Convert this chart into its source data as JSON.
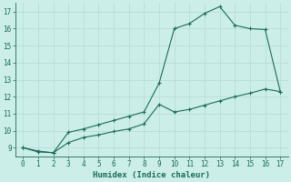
{
  "xlabel": "Humidex (Indice chaleur)",
  "background_color": "#cceee8",
  "grid_color": "#bbddda",
  "line_color": "#1a6b5a",
  "line1_x": [
    0,
    1,
    2,
    3,
    4,
    5,
    6,
    7,
    8,
    9,
    10,
    11,
    12,
    13,
    14,
    15,
    16,
    17
  ],
  "line1_y": [
    9.0,
    8.8,
    8.7,
    9.9,
    10.1,
    10.35,
    10.6,
    10.85,
    11.1,
    12.8,
    16.0,
    16.3,
    16.9,
    17.3,
    16.2,
    16.0,
    15.95,
    12.3
  ],
  "line2_x": [
    0,
    1,
    2,
    3,
    4,
    5,
    6,
    7,
    8,
    9,
    10,
    11,
    12,
    13,
    14,
    15,
    16,
    17
  ],
  "line2_y": [
    9.0,
    8.75,
    8.7,
    9.3,
    9.6,
    9.75,
    9.95,
    10.1,
    10.4,
    11.55,
    11.1,
    11.25,
    11.5,
    11.75,
    12.0,
    12.2,
    12.45,
    12.3
  ],
  "xlim": [
    -0.5,
    17.5
  ],
  "ylim": [
    8.5,
    17.5
  ],
  "xticks": [
    0,
    1,
    2,
    3,
    4,
    5,
    6,
    7,
    8,
    9,
    10,
    11,
    12,
    13,
    14,
    15,
    16,
    17
  ],
  "yticks": [
    9,
    10,
    11,
    12,
    13,
    14,
    15,
    16,
    17
  ],
  "tick_fontsize": 5.5,
  "xlabel_fontsize": 6.5
}
